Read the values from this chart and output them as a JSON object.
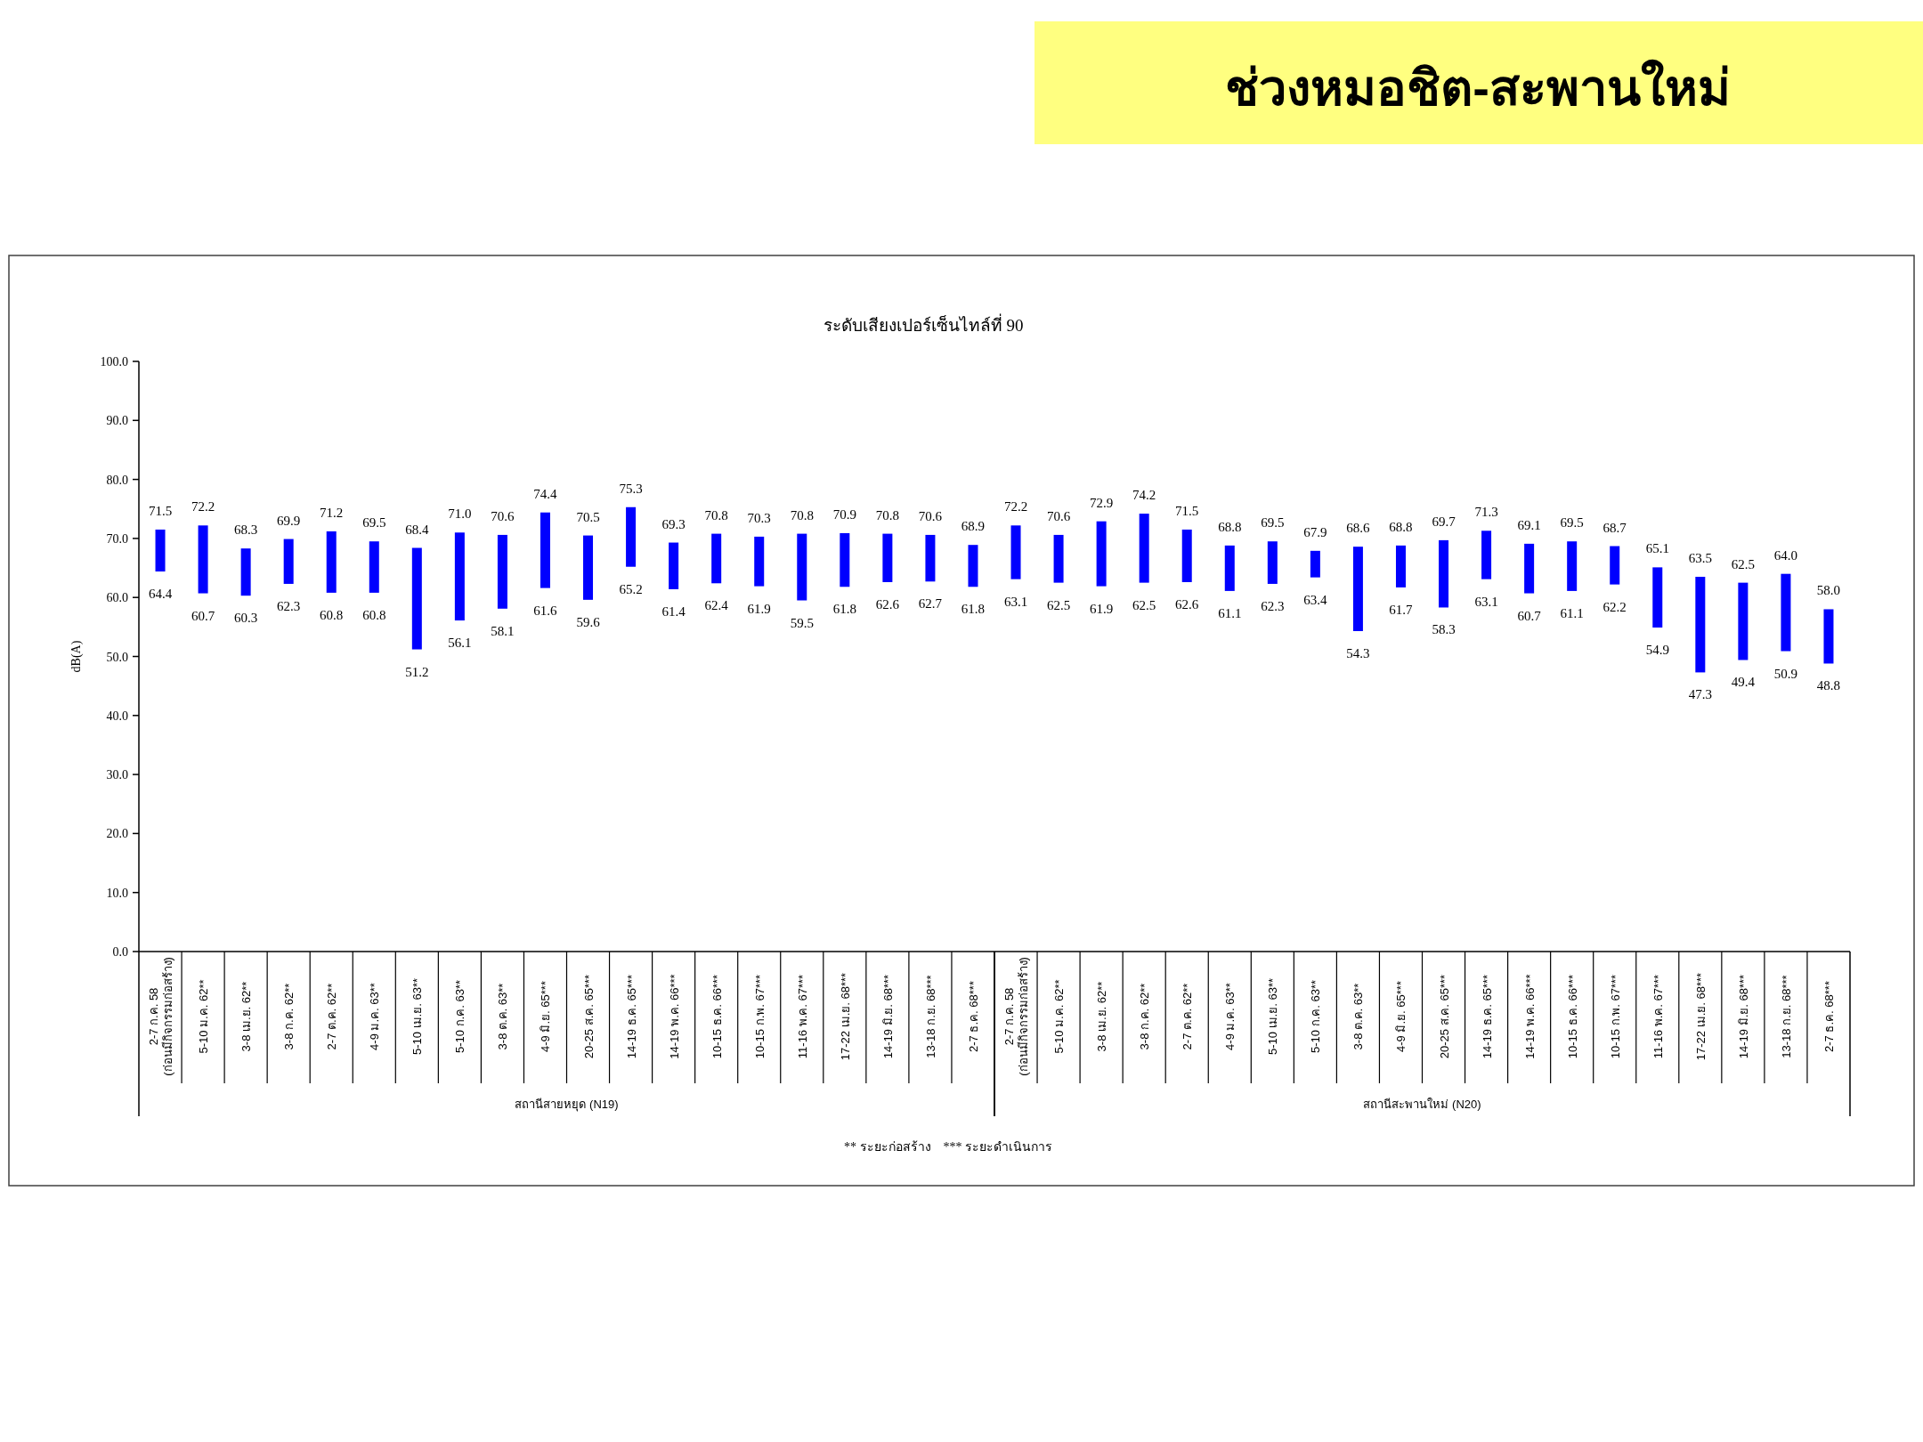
{
  "chart_data": [
    {
      "type": "bar",
      "subtitle": "ระดับเสียงเปอร์เซ็นไทล์ที่ 90",
      "ylabel": "dB(A)",
      "xlabel": "สถานีสายหยุด (N19)",
      "categories": [
        "2-7 ก.ค. 58\n(ก่อนมีกิจกรรมก่อสร้าง)",
        "5-10 ม.ค. 62**",
        "3-8 เม.ย. 62**",
        "3-8 ก.ค. 62**",
        "2-7 ต.ค. 62**",
        "4-9 ม.ค. 63**",
        "5-10 เม.ย. 63**",
        "5-10 ก.ค. 63**",
        "3-8 ต.ค. 63**",
        "4-9 มิ.ย. 65***",
        "20-25 ส.ค. 65***",
        "14-19 ธ.ค. 65***",
        "14-19 พ.ค. 66***",
        "10-15 ธ.ค. 66***",
        "10-15 ก.พ. 67***",
        "11-16 พ.ค. 67***",
        "17-22 เม.ย. 68***",
        "14-19 มิ.ย. 68***",
        "13-18 ก.ย. 68***",
        "2-7 ธ.ค. 68***"
      ],
      "base": [
        64.4,
        60.7,
        60.3,
        62.3,
        60.8,
        60.8,
        51.2,
        56.1,
        58.1,
        61.6,
        59.6,
        65.2,
        61.4,
        62.4,
        61.9,
        59.5,
        61.8,
        62.6,
        62.7,
        61.8
      ],
      "values": [
        7.1,
        11.5,
        8.0,
        7.6,
        10.4,
        8.7,
        17.2,
        14.9,
        12.5,
        12.8,
        10.9,
        10.1,
        7.9,
        8.4,
        8.4,
        11.3,
        9.1,
        8.2,
        7.9,
        7.1
      ],
      "value_labels": [
        "71.5",
        "72.2",
        "68.3",
        "69.9",
        "71.2",
        "69.5",
        "68.4",
        "71.0",
        "70.6",
        "74.4",
        "70.5",
        "75.3",
        "69.3",
        "70.8",
        "70.3",
        "70.8",
        "70.9",
        "70.8",
        "70.6",
        "68.9"
      ],
      "color": "#0000ff",
      "ylim": [
        0,
        100
      ],
      "yticks": [
        {
          "value": 0,
          "label": "0.0"
        },
        {
          "value": 10,
          "label": "10.0"
        },
        {
          "value": 20,
          "label": "20.0"
        },
        {
          "value": 30,
          "label": "30.0"
        },
        {
          "value": 40,
          "label": "40.0"
        },
        {
          "value": 50,
          "label": "50.0"
        },
        {
          "value": 60,
          "label": "60.0"
        },
        {
          "value": 70,
          "label": "70.0"
        },
        {
          "value": 80,
          "label": "80.0"
        },
        {
          "value": 90,
          "label": "90.0"
        },
        {
          "value": 100,
          "label": "100.0"
        }
      ],
      "annotations": [
        {
          "text": "64.4",
          "x": "2-7 ก.ค. 58\n(ก่อนมีกิจกรรมก่อสร้าง)",
          "y": 64.4
        },
        {
          "text": "60.7",
          "x": "5-10 ม.ค. 62**",
          "y": 60.7
        },
        {
          "text": "60.3",
          "x": "3-8 เม.ย. 62**",
          "y": 60.3
        },
        {
          "text": "62.3",
          "x": "3-8 ก.ค. 62**",
          "y": 62.3
        },
        {
          "text": "60.8",
          "x": "2-7 ต.ค. 62**",
          "y": 60.8
        },
        {
          "text": "60.8",
          "x": "4-9 ม.ค. 63**",
          "y": 60.8
        },
        {
          "text": "51.2",
          "x": "5-10 เม.ย. 63**",
          "y": 51.2
        },
        {
          "text": "56.1",
          "x": "5-10 ก.ค. 63**",
          "y": 56.1
        },
        {
          "text": "58.1",
          "x": "3-8 ต.ค. 63**",
          "y": 58.1
        },
        {
          "text": "61.6",
          "x": "4-9 มิ.ย. 65***",
          "y": 61.6
        },
        {
          "text": "59.6",
          "x": "20-25 ส.ค. 65***",
          "y": 59.6
        },
        {
          "text": "65.2",
          "x": "14-19 ธ.ค. 65***",
          "y": 65.2
        },
        {
          "text": "61.4",
          "x": "14-19 พ.ค. 66***",
          "y": 61.4
        },
        {
          "text": "62.4",
          "x": "10-15 ธ.ค. 66***",
          "y": 62.4
        },
        {
          "text": "61.9",
          "x": "10-15 ก.พ. 67***",
          "y": 61.9
        },
        {
          "text": "59.5",
          "x": "11-16 พ.ค. 67***",
          "y": 59.5
        },
        {
          "text": "61.8",
          "x": "17-22 เม.ย. 68***",
          "y": 61.8
        },
        {
          "text": "62.6",
          "x": "14-19 มิ.ย. 68***",
          "y": 62.6
        },
        {
          "text": "62.7",
          "x": "13-18 ก.ย. 68***",
          "y": 62.7
        },
        {
          "text": "61.8",
          "x": "2-7 ธ.ค. 68***",
          "y": 61.8
        },
        "** ระยะก่อสร้าง    *** ระยะดำเนินการ"
      ]
    },
    {
      "type": "bar",
      "title": "ช่วงหมอชิต-สะพานใหม่",
      "xlabel": "สถานีสะพานใหม่ (N20)",
      "tick_labels": "x",
      "categories": [
        "2-7 ก.ค. 58\n(ก่อนมีกิจกรรมก่อสร้าง)",
        "5-10 ม.ค. 62**",
        "3-8 เม.ย. 62**",
        "3-8 ก.ค. 62**",
        "2-7 ต.ค. 62**",
        "4-9 ม.ค. 63**",
        "5-10 เม.ย. 63**",
        "5-10 ก.ค. 63**",
        "3-8 ต.ค. 63**",
        "4-9 มิ.ย. 65***",
        "20-25 ส.ค. 65***",
        "14-19 ธ.ค. 65***",
        "14-19 พ.ค. 66***",
        "10-15 ธ.ค. 66***",
        "10-15 ก.พ. 67***",
        "11-16 พ.ค. 67***",
        "17-22 เม.ย. 68***",
        "14-19 มิ.ย. 68***",
        "13-18 ก.ย. 68***",
        "2-7 ธ.ค. 68***"
      ],
      "base": [
        63.1,
        62.5,
        61.9,
        62.5,
        62.6,
        61.1,
        62.3,
        63.4,
        54.3,
        61.7,
        58.3,
        63.1,
        60.7,
        61.1,
        62.2,
        54.9,
        47.3,
        49.4,
        50.9,
        48.8
      ],
      "values": [
        9.1,
        8.1,
        11.0,
        11.7,
        8.9,
        7.7,
        7.2,
        4.5,
        14.3,
        7.1,
        11.4,
        8.2,
        8.4,
        8.4,
        6.5,
        10.2,
        16.2,
        13.1,
        13.1,
        9.2
      ],
      "value_labels": [
        "72.2",
        "70.6",
        "72.9",
        "74.2",
        "71.5",
        "68.8",
        "69.5",
        "67.9",
        "68.6",
        "68.8",
        "69.7",
        "71.3",
        "69.1",
        "69.5",
        "68.7",
        "65.1",
        "63.5",
        "62.5",
        "64.0",
        "58.0"
      ],
      "color": "#0000ff",
      "ylim": [
        0,
        100
      ],
      "annotations": [
        {
          "text": "63.1",
          "x": "2-7 ก.ค. 58\n(ก่อนมีกิจกรรมก่อสร้าง)",
          "y": 63.1
        },
        {
          "text": "62.5",
          "x": "5-10 ม.ค. 62**",
          "y": 62.5
        },
        {
          "text": "61.9",
          "x": "3-8 เม.ย. 62**",
          "y": 61.9
        },
        {
          "text": "62.5",
          "x": "3-8 ก.ค. 62**",
          "y": 62.5
        },
        {
          "text": "62.6",
          "x": "2-7 ต.ค. 62**",
          "y": 62.6
        },
        {
          "text": "61.1",
          "x": "4-9 ม.ค. 63**",
          "y": 61.1
        },
        {
          "text": "62.3",
          "x": "5-10 เม.ย. 63**",
          "y": 62.3
        },
        {
          "text": "63.4",
          "x": "5-10 ก.ค. 63**",
          "y": 63.4
        },
        {
          "text": "54.3",
          "x": "3-8 ต.ค. 63**",
          "y": 54.3
        },
        {
          "text": "61.7",
          "x": "4-9 มิ.ย. 65***",
          "y": 61.7
        },
        {
          "text": "58.3",
          "x": "20-25 ส.ค. 65***",
          "y": 58.3
        },
        {
          "text": "63.1",
          "x": "14-19 ธ.ค. 65***",
          "y": 63.1
        },
        {
          "text": "60.7",
          "x": "14-19 พ.ค. 66***",
          "y": 60.7
        },
        {
          "text": "61.1",
          "x": "10-15 ธ.ค. 66***",
          "y": 61.1
        },
        {
          "text": "62.2",
          "x": "10-15 ก.พ. 67***",
          "y": 62.2
        },
        {
          "text": "54.9",
          "x": "11-16 พ.ค. 67***",
          "y": 54.9
        },
        {
          "text": "47.3",
          "x": "17-22 เม.ย. 68***",
          "y": 47.3
        },
        {
          "text": "49.4",
          "x": "14-19 มิ.ย. 68***",
          "y": 49.4
        },
        {
          "text": "50.9",
          "x": "13-18 ก.ย. 68***",
          "y": 50.9
        },
        {
          "text": "48.8",
          "x": "2-7 ธ.ค. 68***",
          "y": 48.8
        }
      ]
    }
  ]
}
